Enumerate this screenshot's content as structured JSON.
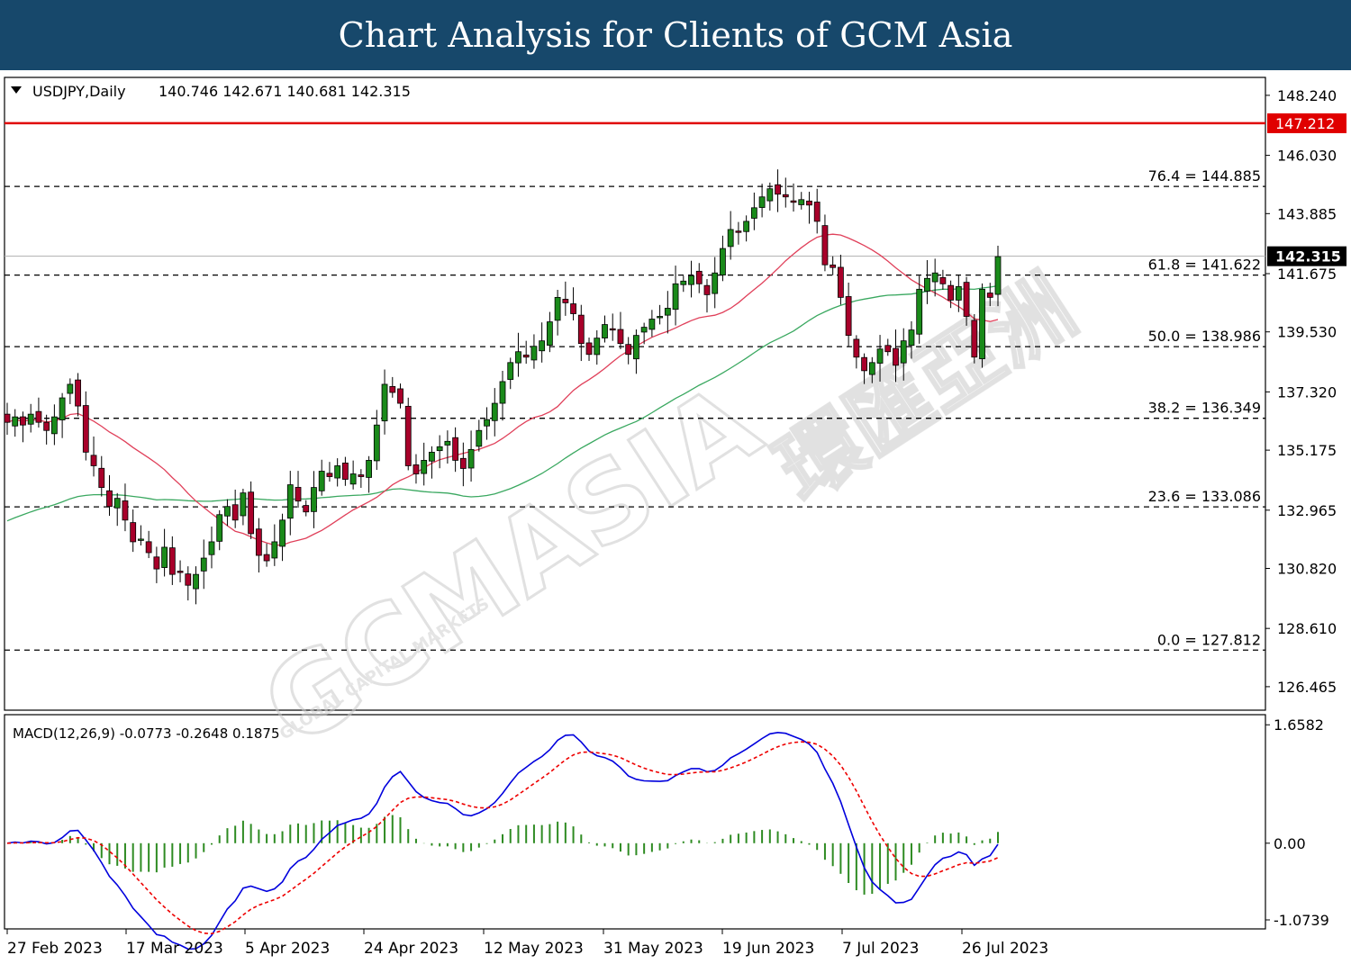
{
  "banner": {
    "title": "Chart Analysis for Clients of GCM Asia"
  },
  "watermark": {
    "brand": "GCMASIA",
    "brand_cn": "環匯亞洲",
    "tagline": "GLOBAL CAPITAL MARKETS"
  },
  "colors": {
    "bull": "#1a8a1a",
    "bear": "#a8002a",
    "ma_fast": "#e0405a",
    "ma_slow": "#3aa860",
    "resistance": "#e00000",
    "macd": "#0000dd",
    "signal": "#ee0000",
    "histogram": "#2e8b22"
  },
  "chart_data": [
    {
      "type": "candlestick",
      "symbol_label": "USDJPY,Daily",
      "ohlc_label": "140.746 142.671 140.681 142.315",
      "last_price": 142.315,
      "last_price_label": "142.315",
      "resistance": 147.212,
      "resistance_label": "147.212",
      "ylim": [
        125.6,
        148.9
      ],
      "yticks": [
        "148.240",
        "146.030",
        "143.885",
        "141.675",
        "139.530",
        "137.320",
        "135.175",
        "132.965",
        "130.820",
        "128.610",
        "126.465"
      ],
      "fib_levels": [
        {
          "label": "76.4 = 144.885",
          "value": 144.885
        },
        {
          "label": "61.8 = 141.622",
          "value": 141.622
        },
        {
          "label": "50.0 = 138.986",
          "value": 138.986
        },
        {
          "label": "38.2 = 136.349",
          "value": 136.349
        },
        {
          "label": "23.6 = 133.086",
          "value": 133.086
        },
        {
          "label": "0.0 = 127.812",
          "value": 127.812
        }
      ],
      "xticks": [
        "27 Feb 2023",
        "17 Mar 2023",
        "5 Apr 2023",
        "24 Apr 2023",
        "12 May 2023",
        "31 May 2023",
        "19 Jun 2023",
        "7 Jul 2023",
        "26 Jul 2023"
      ],
      "closes": [
        136.2,
        136.4,
        136.1,
        136.5,
        136.2,
        135.9,
        136.4,
        137.1,
        137.6,
        136.8,
        135.1,
        134.6,
        133.8,
        133.1,
        133.4,
        132.6,
        131.8,
        131.9,
        131.4,
        130.8,
        131.6,
        130.6,
        130.7,
        130.2,
        130.6,
        131.2,
        131.8,
        132.8,
        133.1,
        132.6,
        133.6,
        132.1,
        131.3,
        131.1,
        131.8,
        132.6,
        133.9,
        133.3,
        132.9,
        133.8,
        134.4,
        134.2,
        134.6,
        134.1,
        134.3,
        134.2,
        134.8,
        136.1,
        137.6,
        137.3,
        136.9,
        134.6,
        134.3,
        134.8,
        135.1,
        135.3,
        135.5,
        134.8,
        134.5,
        135.2,
        135.9,
        136.3,
        136.9,
        137.7,
        138.4,
        138.8,
        138.6,
        139.0,
        139.2,
        139.9,
        140.8,
        140.6,
        140.2,
        139.1,
        138.7,
        139.3,
        139.8,
        139.6,
        139.1,
        138.7,
        139.4,
        139.7,
        140.0,
        140.1,
        140.4,
        141.3,
        141.4,
        141.6,
        141.3,
        140.9,
        141.7,
        142.6,
        143.3,
        143.2,
        143.6,
        144.1,
        144.5,
        144.8,
        144.6,
        144.5,
        144.3,
        144.4,
        144.2,
        143.6,
        142.0,
        141.9,
        140.8,
        139.4,
        138.6,
        138.1,
        138.4,
        138.9,
        138.8,
        138.3,
        139.2,
        139.6,
        141.1,
        141.5,
        141.7,
        141.3,
        140.7,
        141.2,
        140.1,
        138.6,
        141.1,
        140.8,
        142.3
      ],
      "macd": {
        "label": "MACD(12,26,9) -0.0773 -0.2648 0.1875",
        "ylim": [
          -1.2,
          1.8
        ],
        "yticks": [
          "1.6582",
          "0.00",
          "-1.0739"
        ]
      }
    }
  ]
}
